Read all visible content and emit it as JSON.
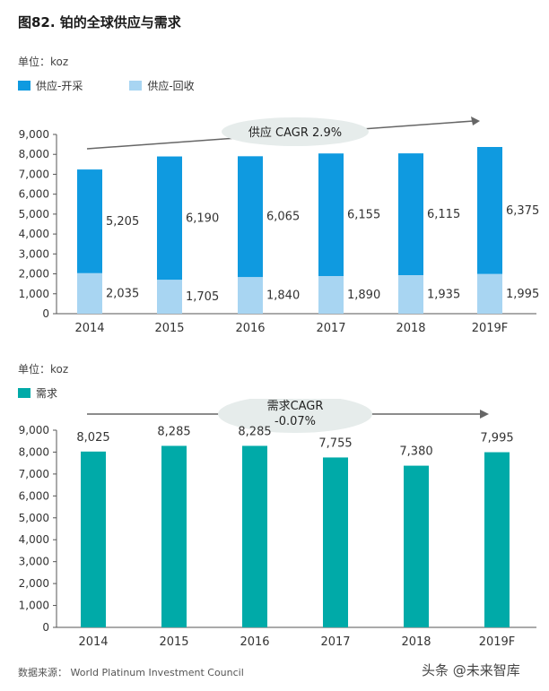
{
  "figure_title": "图82. 铂的全球供应与需求",
  "supply_chart": {
    "unit_label": "单位：koz",
    "trend_label": "供应 CAGR 2.9%"
  },
  "demand_chart": {
    "unit_label": "单位：koz",
    "trend_label_line1": "需求CAGR",
    "trend_label_line2": "-0.07%"
  },
  "source_text": "数据来源： World Platinum Investment Council",
  "watermark_text": "头条 @未来智库",
  "colors": {
    "mining": "#0f9ae0",
    "recycling": "#a8d5f2",
    "demand": "#00aaa8",
    "ellipse": "#e6eceb",
    "axis": "#555555",
    "arrow": "#666666"
  },
  "chart_data": [
    {
      "type": "bar",
      "stacked": true,
      "categories": [
        "2014",
        "2015",
        "2016",
        "2017",
        "2018",
        "2019F"
      ],
      "series": [
        {
          "name": "供应-回收",
          "values": [
            2035,
            1705,
            1840,
            1890,
            1935,
            1995
          ]
        },
        {
          "name": "供应-开采",
          "values": [
            5205,
            6190,
            6065,
            6155,
            6115,
            6375
          ]
        }
      ],
      "ylim": [
        0,
        9000
      ],
      "yticks": [
        "0",
        "1,000",
        "2,000",
        "3,000",
        "4,000",
        "5,000",
        "6,000",
        "7,000",
        "8,000",
        "9,000"
      ],
      "legend": "top-left",
      "grid": false
    },
    {
      "type": "bar",
      "categories": [
        "2014",
        "2015",
        "2016",
        "2017",
        "2018",
        "2019F"
      ],
      "series": [
        {
          "name": "需求",
          "values": [
            8025,
            8285,
            8285,
            7755,
            7380,
            7995
          ]
        }
      ],
      "ylim": [
        0,
        9000
      ],
      "yticks": [
        "0",
        "1,000",
        "2,000",
        "3,000",
        "4,000",
        "5,000",
        "6,000",
        "7,000",
        "8,000",
        "9,000"
      ],
      "legend": "top-left",
      "grid": false
    }
  ]
}
